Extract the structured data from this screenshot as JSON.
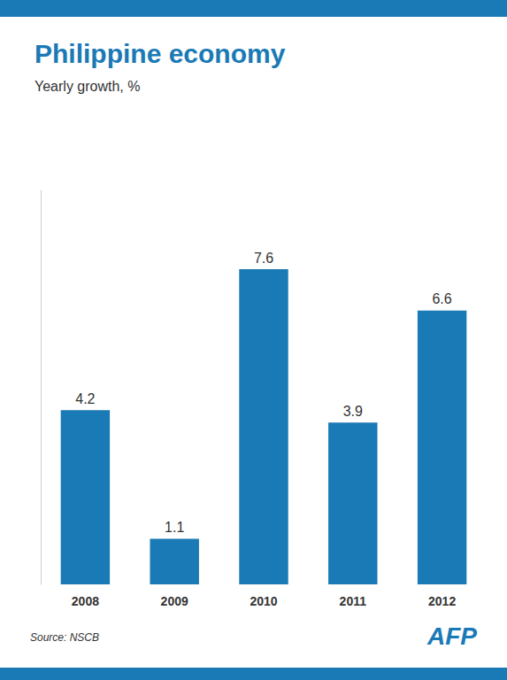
{
  "chart_data": {
    "type": "bar",
    "title": "Philippine economy",
    "subtitle": "Yearly growth, %",
    "categories": [
      "2008",
      "2009",
      "2010",
      "2011",
      "2012"
    ],
    "values": [
      4.2,
      1.1,
      7.6,
      3.9,
      6.6
    ],
    "color": "#1a7ab5",
    "ylim": [
      0,
      9.5
    ],
    "grid": false,
    "data_labels": true,
    "tick_labels": "x",
    "annotations": [
      "Source: NSCB",
      "AFP"
    ]
  }
}
